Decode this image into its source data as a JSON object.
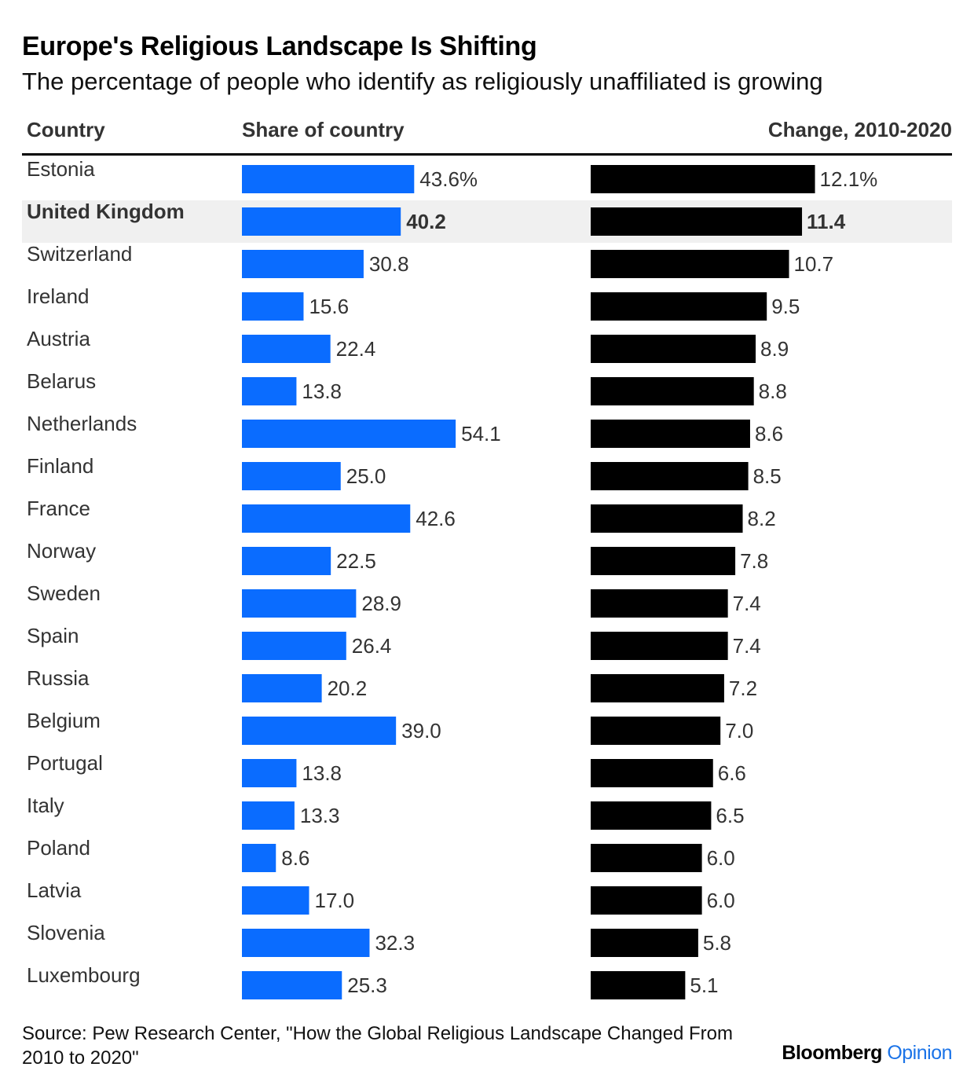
{
  "chart_data": {
    "type": "bar",
    "title": "Europe's Religious Landscape Is Shifting",
    "subtitle": "The percentage of people who identify as religiously unaffiliated is growing",
    "column_headers": {
      "country": "Country",
      "share": "Share of country",
      "change": "Change, 2010-2020"
    },
    "categories": [
      "Estonia",
      "United Kingdom",
      "Switzerland",
      "Ireland",
      "Austria",
      "Belarus",
      "Netherlands",
      "Finland",
      "France",
      "Norway",
      "Sweden",
      "Spain",
      "Russia",
      "Belgium",
      "Portugal",
      "Italy",
      "Poland",
      "Latvia",
      "Slovenia",
      "Luxembourg"
    ],
    "highlighted": "United Kingdom",
    "series": [
      {
        "name": "Share of country",
        "color": "#0a6cff",
        "values": [
          43.6,
          40.2,
          30.8,
          15.6,
          22.4,
          13.8,
          54.1,
          25.0,
          42.6,
          22.5,
          28.9,
          26.4,
          20.2,
          39.0,
          13.8,
          13.3,
          8.6,
          17.0,
          32.3,
          25.3
        ],
        "labels": [
          "43.6%",
          "40.2",
          "30.8",
          "15.6",
          "22.4",
          "13.8",
          "54.1",
          "25.0",
          "42.6",
          "22.5",
          "28.9",
          "26.4",
          "20.2",
          "39.0",
          "13.8",
          "13.3",
          "8.6",
          "17.0",
          "32.3",
          "25.3"
        ]
      },
      {
        "name": "Change, 2010-2020",
        "color": "#000000",
        "values": [
          12.1,
          11.4,
          10.7,
          9.5,
          8.9,
          8.8,
          8.6,
          8.5,
          8.2,
          7.8,
          7.4,
          7.4,
          7.2,
          7.0,
          6.6,
          6.5,
          6.0,
          6.0,
          5.8,
          5.1
        ],
        "labels": [
          "12.1%",
          "11.4",
          "10.7",
          "9.5",
          "8.9",
          "8.8",
          "8.6",
          "8.5",
          "8.2",
          "7.8",
          "7.4",
          "7.4",
          "7.2",
          "7.0",
          "6.6",
          "6.5",
          "6.0",
          "6.0",
          "5.8",
          "5.1"
        ]
      }
    ]
  },
  "footer": {
    "source": "Source: Pew Research Center, \"How the Global Religious Landscape Changed From 2010 to 2020\"",
    "brand_main": "Bloomberg",
    "brand_accent": "Opinion"
  }
}
